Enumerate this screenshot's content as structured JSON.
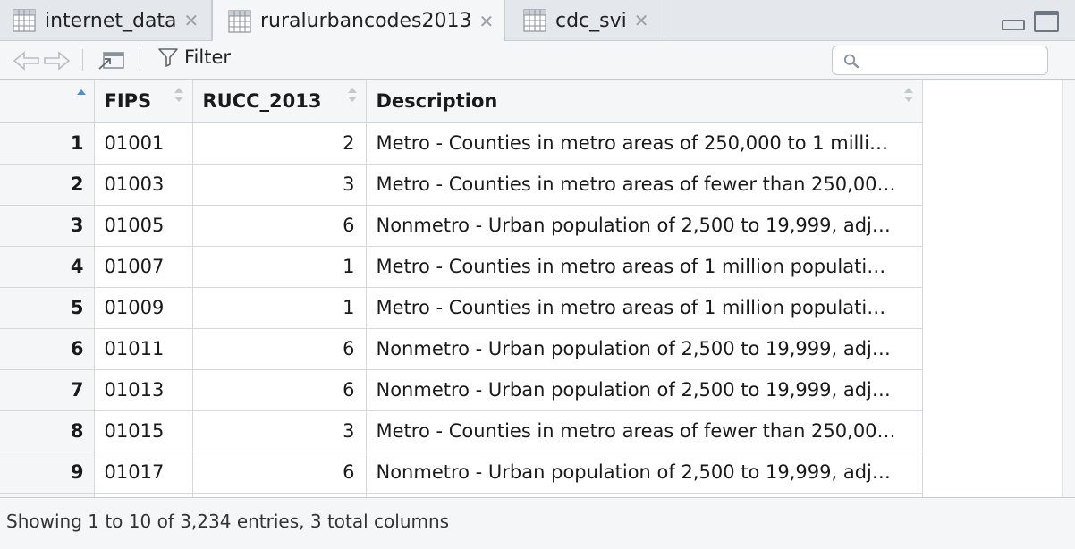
{
  "tabs": [
    {
      "label": "internet_data",
      "active": false
    },
    {
      "label": "ruralurbancodes2013",
      "active": true
    },
    {
      "label": "cdc_svi",
      "active": false
    }
  ],
  "toolbar": {
    "filter_label": "Filter",
    "search_placeholder": ""
  },
  "table": {
    "columns": [
      "FIPS",
      "RUCC_2013",
      "Description"
    ],
    "rows": [
      {
        "n": "1",
        "fips": "01001",
        "rucc": "2",
        "desc": "Metro - Counties in metro areas of 250,000 to 1 milli…"
      },
      {
        "n": "2",
        "fips": "01003",
        "rucc": "3",
        "desc": "Metro - Counties in metro areas of fewer than 250,00…"
      },
      {
        "n": "3",
        "fips": "01005",
        "rucc": "6",
        "desc": "Nonmetro - Urban population of 2,500 to 19,999, adj…"
      },
      {
        "n": "4",
        "fips": "01007",
        "rucc": "1",
        "desc": "Metro - Counties in metro areas of 1 million populati…"
      },
      {
        "n": "5",
        "fips": "01009",
        "rucc": "1",
        "desc": "Metro - Counties in metro areas of 1 million populati…"
      },
      {
        "n": "6",
        "fips": "01011",
        "rucc": "6",
        "desc": "Nonmetro - Urban population of 2,500 to 19,999, adj…"
      },
      {
        "n": "7",
        "fips": "01013",
        "rucc": "6",
        "desc": "Nonmetro - Urban population of 2,500 to 19,999, adj…"
      },
      {
        "n": "8",
        "fips": "01015",
        "rucc": "3",
        "desc": "Metro - Counties in metro areas of fewer than 250,00…"
      },
      {
        "n": "9",
        "fips": "01017",
        "rucc": "6",
        "desc": "Nonmetro - Urban population of 2,500 to 19,999, adj…"
      }
    ]
  },
  "footer": {
    "status": "Showing 1 to 10 of 3,234 entries, 3 total columns"
  },
  "colors": {
    "chrome": "#e4e8ec",
    "panel": "#f4f6f8",
    "border": "#c6ccd2",
    "sort_active": "#4a90d9"
  }
}
